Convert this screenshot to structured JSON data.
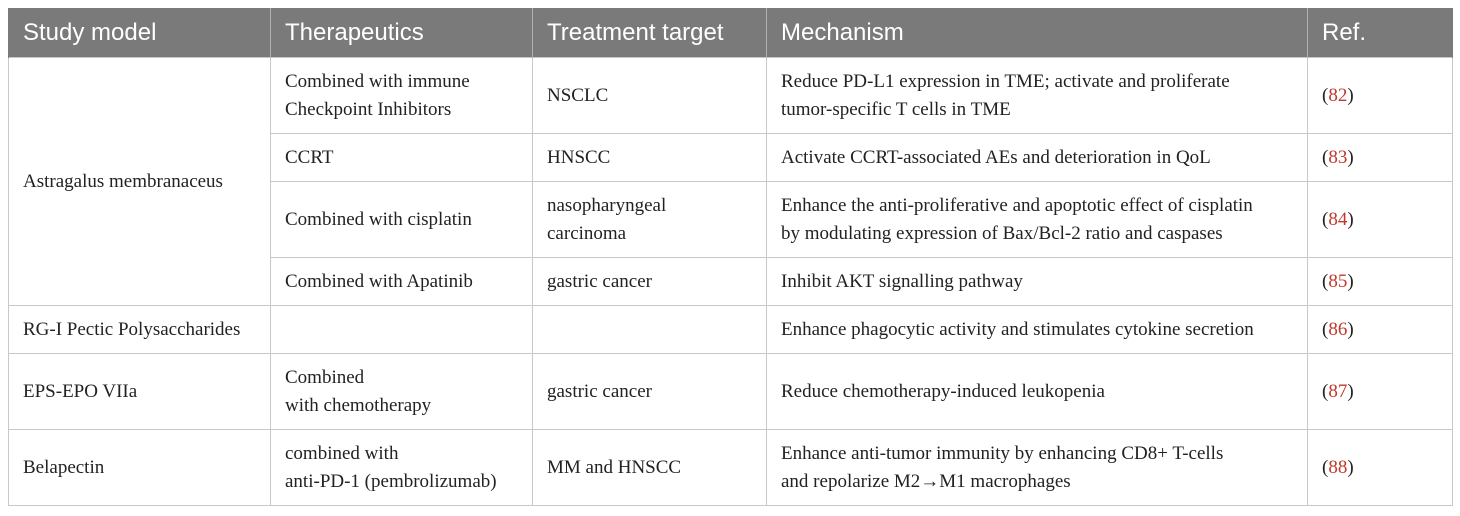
{
  "headers": [
    "Study model",
    "Therapeutics",
    "Treatment target",
    "Mechanism",
    "Ref."
  ],
  "rows": [
    {
      "model": "Astragalus membranaceus",
      "therapeutics": [
        "Combined with immune",
        "Checkpoint Inhibitors"
      ],
      "target": [
        "NSCLC"
      ],
      "mechanism": [
        "Reduce PD-L1 expression in TME; activate and proliferate",
        "tumor-specific T cells in TME"
      ],
      "ref": "82"
    },
    {
      "therapeutics": [
        "CCRT"
      ],
      "target": [
        "HNSCC"
      ],
      "mechanism": [
        "Activate CCRT-associated AEs and deterioration in QoL"
      ],
      "ref": "83"
    },
    {
      "therapeutics": [
        "Combined with cisplatin"
      ],
      "target": [
        "nasopharyngeal",
        "carcinoma"
      ],
      "mechanism": [
        "Enhance the anti-proliferative and apoptotic effect of cisplatin",
        "by modulating expression of Bax/Bcl-2 ratio and caspases"
      ],
      "ref": "84"
    },
    {
      "therapeutics": [
        "Combined with Apatinib"
      ],
      "target": [
        "gastric cancer"
      ],
      "mechanism": [
        "Inhibit AKT signalling pathway"
      ],
      "ref": "85"
    },
    {
      "model": "RG-I Pectic Polysaccharides",
      "therapeutics": [],
      "target": [],
      "mechanism": [
        "Enhance phagocytic activity and stimulates cytokine secretion"
      ],
      "ref": "86"
    },
    {
      "model": "EPS-EPO VIIa",
      "therapeutics": [
        "Combined",
        "with chemotherapy"
      ],
      "target": [
        "gastric cancer"
      ],
      "mechanism": [
        "Reduce chemotherapy-induced leukopenia"
      ],
      "ref": "87"
    },
    {
      "model": "Belapectin",
      "therapeutics": [
        "combined with",
        "anti-PD-1 (pembrolizumab)"
      ],
      "target": [
        "MM and HNSCC"
      ],
      "mechanism": [
        "Enhance anti-tumor immunity by enhancing CD8+ T-cells",
        "and repolarize M2→M1 macrophages"
      ],
      "ref": "88"
    }
  ]
}
